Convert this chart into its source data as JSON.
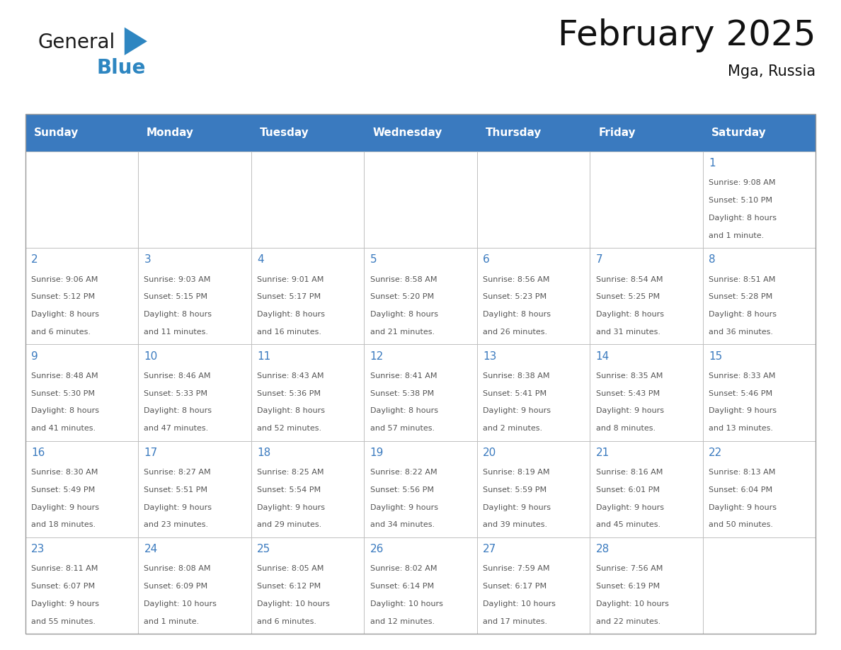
{
  "title": "February 2025",
  "subtitle": "Mga, Russia",
  "header_bg": "#3a7abf",
  "header_text_color": "#ffffff",
  "cell_bg_white": "#ffffff",
  "day_number_color": "#3a7abf",
  "text_color": "#555555",
  "border_color": "#bbbbbb",
  "logo_general_color": "#1a1a1a",
  "logo_blue_color": "#2e86c1",
  "logo_triangle_color": "#2e86c1",
  "days_of_week": [
    "Sunday",
    "Monday",
    "Tuesday",
    "Wednesday",
    "Thursday",
    "Friday",
    "Saturday"
  ],
  "weeks": [
    [
      {
        "day": "",
        "info": ""
      },
      {
        "day": "",
        "info": ""
      },
      {
        "day": "",
        "info": ""
      },
      {
        "day": "",
        "info": ""
      },
      {
        "day": "",
        "info": ""
      },
      {
        "day": "",
        "info": ""
      },
      {
        "day": "1",
        "info": "Sunrise: 9:08 AM\nSunset: 5:10 PM\nDaylight: 8 hours\nand 1 minute."
      }
    ],
    [
      {
        "day": "2",
        "info": "Sunrise: 9:06 AM\nSunset: 5:12 PM\nDaylight: 8 hours\nand 6 minutes."
      },
      {
        "day": "3",
        "info": "Sunrise: 9:03 AM\nSunset: 5:15 PM\nDaylight: 8 hours\nand 11 minutes."
      },
      {
        "day": "4",
        "info": "Sunrise: 9:01 AM\nSunset: 5:17 PM\nDaylight: 8 hours\nand 16 minutes."
      },
      {
        "day": "5",
        "info": "Sunrise: 8:58 AM\nSunset: 5:20 PM\nDaylight: 8 hours\nand 21 minutes."
      },
      {
        "day": "6",
        "info": "Sunrise: 8:56 AM\nSunset: 5:23 PM\nDaylight: 8 hours\nand 26 minutes."
      },
      {
        "day": "7",
        "info": "Sunrise: 8:54 AM\nSunset: 5:25 PM\nDaylight: 8 hours\nand 31 minutes."
      },
      {
        "day": "8",
        "info": "Sunrise: 8:51 AM\nSunset: 5:28 PM\nDaylight: 8 hours\nand 36 minutes."
      }
    ],
    [
      {
        "day": "9",
        "info": "Sunrise: 8:48 AM\nSunset: 5:30 PM\nDaylight: 8 hours\nand 41 minutes."
      },
      {
        "day": "10",
        "info": "Sunrise: 8:46 AM\nSunset: 5:33 PM\nDaylight: 8 hours\nand 47 minutes."
      },
      {
        "day": "11",
        "info": "Sunrise: 8:43 AM\nSunset: 5:36 PM\nDaylight: 8 hours\nand 52 minutes."
      },
      {
        "day": "12",
        "info": "Sunrise: 8:41 AM\nSunset: 5:38 PM\nDaylight: 8 hours\nand 57 minutes."
      },
      {
        "day": "13",
        "info": "Sunrise: 8:38 AM\nSunset: 5:41 PM\nDaylight: 9 hours\nand 2 minutes."
      },
      {
        "day": "14",
        "info": "Sunrise: 8:35 AM\nSunset: 5:43 PM\nDaylight: 9 hours\nand 8 minutes."
      },
      {
        "day": "15",
        "info": "Sunrise: 8:33 AM\nSunset: 5:46 PM\nDaylight: 9 hours\nand 13 minutes."
      }
    ],
    [
      {
        "day": "16",
        "info": "Sunrise: 8:30 AM\nSunset: 5:49 PM\nDaylight: 9 hours\nand 18 minutes."
      },
      {
        "day": "17",
        "info": "Sunrise: 8:27 AM\nSunset: 5:51 PM\nDaylight: 9 hours\nand 23 minutes."
      },
      {
        "day": "18",
        "info": "Sunrise: 8:25 AM\nSunset: 5:54 PM\nDaylight: 9 hours\nand 29 minutes."
      },
      {
        "day": "19",
        "info": "Sunrise: 8:22 AM\nSunset: 5:56 PM\nDaylight: 9 hours\nand 34 minutes."
      },
      {
        "day": "20",
        "info": "Sunrise: 8:19 AM\nSunset: 5:59 PM\nDaylight: 9 hours\nand 39 minutes."
      },
      {
        "day": "21",
        "info": "Sunrise: 8:16 AM\nSunset: 6:01 PM\nDaylight: 9 hours\nand 45 minutes."
      },
      {
        "day": "22",
        "info": "Sunrise: 8:13 AM\nSunset: 6:04 PM\nDaylight: 9 hours\nand 50 minutes."
      }
    ],
    [
      {
        "day": "23",
        "info": "Sunrise: 8:11 AM\nSunset: 6:07 PM\nDaylight: 9 hours\nand 55 minutes."
      },
      {
        "day": "24",
        "info": "Sunrise: 8:08 AM\nSunset: 6:09 PM\nDaylight: 10 hours\nand 1 minute."
      },
      {
        "day": "25",
        "info": "Sunrise: 8:05 AM\nSunset: 6:12 PM\nDaylight: 10 hours\nand 6 minutes."
      },
      {
        "day": "26",
        "info": "Sunrise: 8:02 AM\nSunset: 6:14 PM\nDaylight: 10 hours\nand 12 minutes."
      },
      {
        "day": "27",
        "info": "Sunrise: 7:59 AM\nSunset: 6:17 PM\nDaylight: 10 hours\nand 17 minutes."
      },
      {
        "day": "28",
        "info": "Sunrise: 7:56 AM\nSunset: 6:19 PM\nDaylight: 10 hours\nand 22 minutes."
      },
      {
        "day": "",
        "info": ""
      }
    ]
  ],
  "figsize": [
    11.88,
    9.18
  ],
  "dpi": 100
}
